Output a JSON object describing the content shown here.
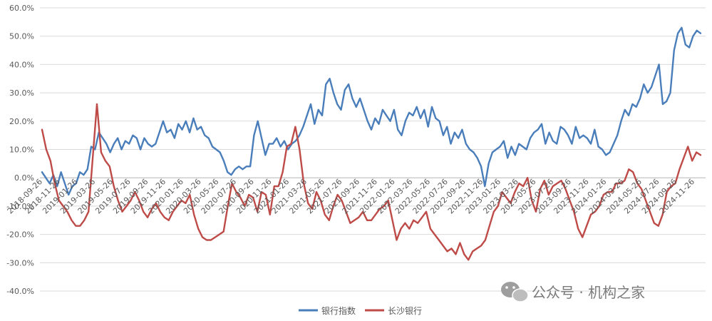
{
  "chart_data": {
    "type": "line",
    "title": "",
    "xlabel": "",
    "ylabel": "",
    "ylim": [
      -40,
      60
    ],
    "y_ticks": [
      "60.0%",
      "50.0%",
      "40.0%",
      "30.0%",
      "20.0%",
      "10.0%",
      "0.0%",
      "-10.0%",
      "-20.0%",
      "-30.0%",
      "-40.0%"
    ],
    "x_ticks": [
      "2018-09-26",
      "2018-11-26",
      "2019-01-26",
      "2019-03-26",
      "2019-05-26",
      "2019-07-26",
      "2019-09-26",
      "2019-11-26",
      "2020-01-26",
      "2020-03-26",
      "2020-05-26",
      "2020-07-26",
      "2020-09-26",
      "2020-11-26",
      "2021-01-26",
      "2021-03-26",
      "2021-05-26",
      "2021-07-26",
      "2021-09-26",
      "2021-11-26",
      "2022-01-26",
      "2022-03-26",
      "2022-05-26",
      "2022-07-26",
      "2022-09-26",
      "2022-11-26",
      "2023-01-26",
      "2023-03-26",
      "2023-05-26",
      "2023-07-26",
      "2023-09-26",
      "2023-11-26",
      "2024-01-26",
      "2024-03-26",
      "2024-05-26",
      "2024-07-26",
      "2024-09-26",
      "2024-11-26"
    ],
    "legend_position": "bottom",
    "grid": "horizontal",
    "series": [
      {
        "name": "银行指数",
        "color": "#4a7ebb",
        "values": [
          2,
          0,
          -2,
          1,
          -3,
          2,
          -2,
          -6,
          -3,
          -2,
          2,
          1,
          3,
          11,
          10,
          16,
          14,
          12,
          9,
          12,
          14,
          10,
          13,
          12,
          15,
          14,
          10,
          14,
          12,
          11,
          12,
          16,
          20,
          16,
          17,
          14,
          19,
          17,
          20,
          16,
          21,
          17,
          18,
          15,
          14,
          11,
          10,
          9,
          6,
          2,
          1,
          3,
          4,
          3,
          4,
          4,
          15,
          20,
          14,
          8,
          12,
          12,
          14,
          11,
          13,
          10,
          12,
          13,
          15,
          18,
          22,
          26,
          19,
          24,
          22,
          33,
          35,
          30,
          26,
          24,
          31,
          33,
          28,
          25,
          28,
          24,
          20,
          17,
          21,
          19,
          24,
          22,
          20,
          24,
          17,
          15,
          20,
          23,
          22,
          25,
          21,
          24,
          18,
          25,
          21,
          20,
          15,
          18,
          12,
          16,
          14,
          17,
          12,
          10,
          9,
          7,
          4,
          -3,
          5,
          9,
          10,
          11,
          13,
          7,
          11,
          8,
          12,
          11,
          10,
          14,
          16,
          17,
          19,
          12,
          16,
          13,
          12,
          18,
          17,
          15,
          12,
          18,
          14,
          15,
          14,
          12,
          17,
          11,
          10,
          8,
          9,
          12,
          15,
          20,
          24,
          22,
          26,
          25,
          28,
          33,
          30,
          32,
          36,
          40,
          26,
          27,
          30,
          45,
          51,
          53,
          47,
          46,
          50,
          52,
          51
        ]
      },
      {
        "name": "长沙银行",
        "color": "#be4b48",
        "values": [
          17,
          10,
          6,
          -2,
          -8,
          -10,
          -12,
          -15,
          -17,
          -17,
          -15,
          -12,
          7,
          26,
          9,
          6,
          4,
          -3,
          -8,
          -12,
          -10,
          -8,
          -5,
          -8,
          -12,
          -14,
          -11,
          -9,
          -12,
          -14,
          -15,
          -12,
          -10,
          -8,
          -9,
          -6,
          -13,
          -18,
          -21,
          -22,
          -22,
          -21,
          -20,
          -19,
          -10,
          -2,
          -5,
          -7,
          -10,
          -6,
          -7,
          -12,
          -5,
          -6,
          -13,
          -3,
          -3,
          2,
          11,
          12,
          18,
          10,
          -2,
          -9,
          -11,
          -5,
          -8,
          -13,
          -15,
          -10,
          -6,
          -8,
          -12,
          -16,
          -15,
          -14,
          -12,
          -15,
          -15,
          -13,
          -11,
          -10,
          -8,
          -15,
          -22,
          -18,
          -16,
          -18,
          -15,
          -16,
          -14,
          -12,
          -18,
          -20,
          -22,
          -24,
          -26,
          -25,
          -27,
          -23,
          -27,
          -29,
          -26,
          -25,
          -24,
          -22,
          -17,
          -12,
          -10,
          -5,
          -7,
          -9,
          -5,
          -2,
          -3,
          0,
          -8,
          -12,
          -4,
          -1,
          -6,
          -3,
          -2,
          -1,
          -4,
          -8,
          -12,
          -18,
          -21,
          -17,
          -13,
          -12,
          -10,
          -6,
          -5,
          -5,
          -2,
          -2,
          -1,
          3,
          2,
          -2,
          -4,
          -8,
          -12,
          -16,
          -17,
          -13,
          -5,
          -3,
          -2,
          3,
          7,
          11,
          6,
          9,
          8
        ]
      }
    ]
  },
  "watermark": {
    "text": "公众号 · 机构之家",
    "icon": "wechat-icon"
  }
}
